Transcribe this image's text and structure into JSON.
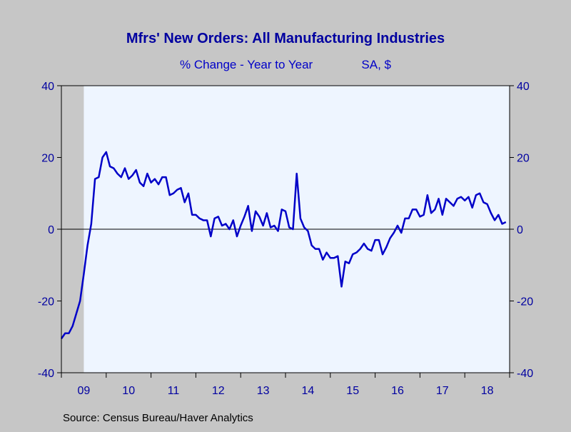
{
  "chart_data": {
    "type": "line",
    "title": "Mfrs' New Orders: All Manufacturing Industries",
    "subtitle_left": "% Change - Year to Year",
    "subtitle_right": "SA, $",
    "source": "Source:  Census Bureau/Haver Analytics",
    "x_start": 2009.0,
    "x_end": 2019.0,
    "ylim": [
      -40,
      40
    ],
    "yticks": [
      -40,
      -20,
      0,
      20,
      40
    ],
    "xtick_labels": [
      {
        "label": "09",
        "year": 2009
      },
      {
        "label": "10",
        "year": 2010
      },
      {
        "label": "11",
        "year": 2011
      },
      {
        "label": "12",
        "year": 2012
      },
      {
        "label": "13",
        "year": 2013
      },
      {
        "label": "14",
        "year": 2014
      },
      {
        "label": "15",
        "year": 2015
      },
      {
        "label": "16",
        "year": 2016
      },
      {
        "label": "17",
        "year": 2017
      },
      {
        "label": "18",
        "year": 2018
      }
    ],
    "recession_shading": {
      "start": 2009.0,
      "end": 2009.5
    },
    "zero_line": true,
    "grid": false,
    "colors": {
      "line": "#0000c8",
      "text": "#0000a0",
      "plot_bg": "#eef5ff",
      "recession": "#c8c8c8",
      "frame": "#000000"
    },
    "series": [
      {
        "start_year": 2009.0,
        "step_months": 1,
        "values": [
          -30.5,
          -29,
          -29,
          -27,
          -23.5,
          -20,
          -12.5,
          -4.5,
          1.5,
          14,
          14.5,
          20,
          21.5,
          17.5,
          17,
          15.5,
          14.5,
          17,
          14,
          15,
          16.5,
          13,
          12,
          15.5,
          13,
          14,
          12.5,
          14.5,
          14.5,
          9.5,
          10,
          11,
          11.5,
          7.5,
          10,
          4,
          4,
          3,
          2.5,
          2.5,
          -2,
          3,
          3.5,
          1,
          1.5,
          0,
          2.5,
          -2,
          1,
          3.5,
          6.5,
          -0.5,
          5,
          3.5,
          1,
          4.5,
          0.5,
          1,
          -0.5,
          5.5,
          5,
          0.5,
          0,
          15.5,
          3,
          0.5,
          -0.5,
          -4.5,
          -5.5,
          -5.5,
          -8.5,
          -6.5,
          -8,
          -8,
          -7.5,
          -16,
          -9,
          -9.5,
          -7,
          -6.5,
          -5.5,
          -4,
          -5.5,
          -6,
          -3,
          -3,
          -7,
          -5,
          -2.5,
          -1,
          1,
          -1,
          3,
          3,
          5.5,
          5.5,
          3.5,
          4,
          9.5,
          4.5,
          5.5,
          8.5,
          4,
          8.5,
          7.5,
          6.5,
          8.5,
          9,
          8,
          9,
          6,
          9.5,
          10,
          7.5,
          7,
          4.5,
          2.5,
          4,
          1.5,
          2
        ]
      }
    ]
  }
}
